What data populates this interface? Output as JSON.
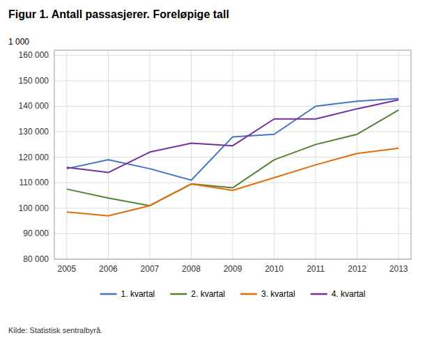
{
  "chart_data": {
    "type": "line",
    "title": "Figur 1. Antall passasjerer. Foreløpige tall",
    "ylabel": "1 000",
    "source": "Kilde: Statistisk sentralbyrå.",
    "x": [
      2005,
      2006,
      2007,
      2008,
      2009,
      2010,
      2011,
      2012,
      2013
    ],
    "xlim": [
      2004.7,
      2013.3
    ],
    "xticks": [
      2005,
      2006,
      2007,
      2008,
      2009,
      2010,
      2011,
      2012,
      2013
    ],
    "series": [
      {
        "name": "1. kvartal",
        "color": "#4472c4",
        "values": [
          115500,
          119000,
          115500,
          111000,
          128000,
          129000,
          140000,
          142000,
          143000
        ]
      },
      {
        "name": "2. kvartal",
        "color": "#548235",
        "values": [
          107500,
          104000,
          101000,
          109500,
          108000,
          119000,
          125000,
          129000,
          138500
        ]
      },
      {
        "name": "3. kvartal",
        "color": "#e36c09",
        "values": [
          98500,
          97000,
          101000,
          109500,
          107000,
          112000,
          117000,
          121500,
          123500
        ]
      },
      {
        "name": "4. kvartal",
        "color": "#7030a0",
        "values": [
          116000,
          114000,
          122000,
          125500,
          124500,
          135000,
          135000,
          139000,
          142500
        ]
      }
    ],
    "ylim": [
      80000,
      162000
    ],
    "yticks": [
      {
        "value": 80000,
        "label": "80 000"
      },
      {
        "value": 90000,
        "label": "90 000"
      },
      {
        "value": 100000,
        "label": "100 000"
      },
      {
        "value": 110000,
        "label": "110 000"
      },
      {
        "value": 120000,
        "label": "120 000"
      },
      {
        "value": 130000,
        "label": "130 000"
      },
      {
        "value": 140000,
        "label": "140 000"
      },
      {
        "value": 150000,
        "label": "150 000"
      },
      {
        "value": 160000,
        "label": "160 000"
      }
    ],
    "grid": true,
    "legend": "bottom"
  }
}
